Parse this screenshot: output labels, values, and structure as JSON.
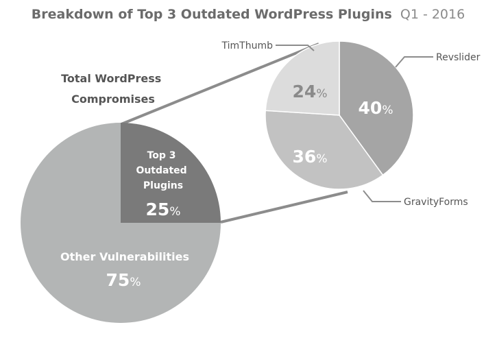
{
  "chart_data": [
    {
      "type": "pie",
      "title": "Breakdown of Top 3 Outdated WordPress Plugins",
      "subtitle": "Q1 - 2016",
      "label": "Total WordPress Compromises",
      "slices": [
        {
          "name": "Top 3 Outdated Plugins",
          "value": 25,
          "color": "#7a7a7a"
        },
        {
          "name": "Other Vulnerabilities",
          "value": 75,
          "color": "#b3b5b5"
        }
      ]
    },
    {
      "type": "pie",
      "slices": [
        {
          "name": "Revslider",
          "value": 40,
          "color": "#a5a5a5"
        },
        {
          "name": "GravityForms",
          "value": 36,
          "color": "#c2c2c2"
        },
        {
          "name": "TimThumb",
          "value": 24,
          "color": "#dcdcdc"
        }
      ]
    }
  ],
  "pct_suffix": "%",
  "text_colors": {
    "connector": "#8c8c8c",
    "label": "#555555"
  }
}
